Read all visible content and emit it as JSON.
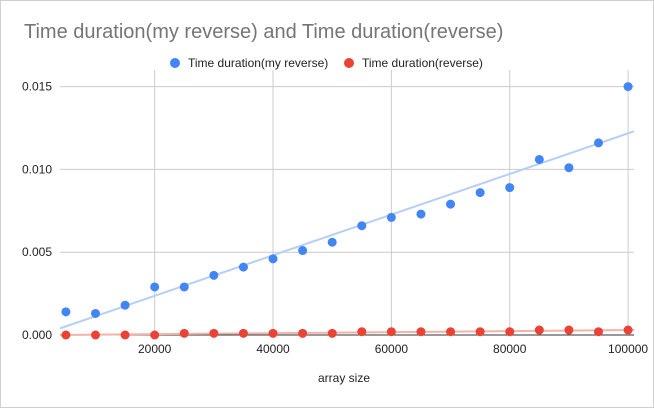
{
  "chart_data": {
    "type": "scatter",
    "title": "Time duration(my reverse) and Time duration(reverse)",
    "xlabel": "array size",
    "ylabel": "",
    "xlim": [
      4000,
      101000
    ],
    "ylim": [
      0,
      0.016
    ],
    "x_ticks": [
      20000,
      40000,
      60000,
      80000,
      100000
    ],
    "x_tick_labels": [
      "20000",
      "40000",
      "60000",
      "80000",
      "100000"
    ],
    "y_ticks": [
      0,
      0.005,
      0.01,
      0.015
    ],
    "y_tick_labels": [
      "0.000",
      "0.005",
      "0.010",
      "0.015"
    ],
    "grid": true,
    "legend_position": "top",
    "x": [
      5000,
      10000,
      15000,
      20000,
      25000,
      30000,
      35000,
      40000,
      45000,
      50000,
      55000,
      60000,
      65000,
      70000,
      75000,
      80000,
      85000,
      90000,
      95000,
      100000
    ],
    "series": [
      {
        "name": "Time duration(my reverse)",
        "color": "#4285f4",
        "trendline_color": "#b7cff5",
        "values": [
          0.0014,
          0.0013,
          0.0018,
          0.0029,
          0.0029,
          0.0036,
          0.0041,
          0.0046,
          0.0051,
          0.0056,
          0.0066,
          0.0071,
          0.0073,
          0.0079,
          0.0086,
          0.0089,
          0.0106,
          0.0101,
          0.0116,
          0.015
        ],
        "trendline": [
          0.0004,
          0.0123
        ]
      },
      {
        "name": "Time duration(reverse)",
        "color": "#ea4335",
        "trendline_color": "#f3b2ab",
        "values": [
          0.0,
          0.0,
          0.0,
          0.0,
          0.0001,
          0.0001,
          0.0001,
          0.0001,
          0.0001,
          0.0001,
          0.0002,
          0.0002,
          0.0002,
          0.0002,
          0.0002,
          0.0002,
          0.0003,
          0.0003,
          0.0002,
          0.0003
        ],
        "trendline": [
          0.0,
          0.0003
        ]
      }
    ]
  }
}
